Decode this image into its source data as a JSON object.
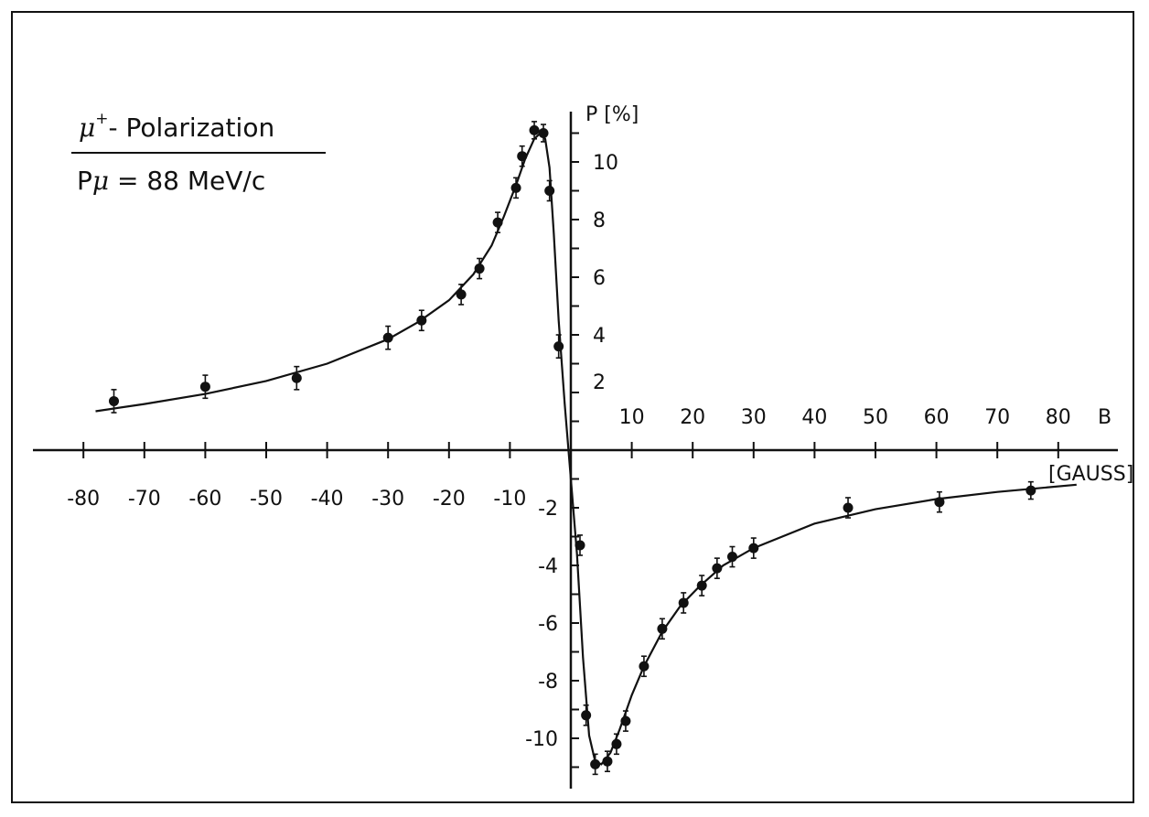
{
  "chart_data": {
    "type": "scatter",
    "title_line1_symbol": "μ",
    "title_line1_sup": "+",
    "title_line1_text": "- Polarization",
    "title_line2_symbol_left": "P",
    "title_line2_symbol": "μ",
    "title_line2_text": " = 88 MeV/c",
    "xlabel": "B",
    "xunit": "[GAUSS]",
    "ylabel": "P [%]",
    "xlim": [
      -80,
      85
    ],
    "ylim": [
      -11.5,
      12
    ],
    "x_ticks_neg": [
      -80,
      -70,
      -60,
      -50,
      -40,
      -30,
      -20,
      -10
    ],
    "x_ticks_pos": [
      10,
      20,
      30,
      40,
      50,
      60,
      70,
      80
    ],
    "y_ticks_pos": [
      2,
      4,
      6,
      8,
      10
    ],
    "y_ticks_neg": [
      -2,
      -4,
      -6,
      -8,
      -10
    ],
    "series": [
      {
        "points": [
          {
            "x": -75,
            "y": 1.7,
            "err": 0.4
          },
          {
            "x": -60,
            "y": 2.2,
            "err": 0.4
          },
          {
            "x": -45,
            "y": 2.5,
            "err": 0.4
          },
          {
            "x": -30,
            "y": 3.9,
            "err": 0.4
          },
          {
            "x": -24.5,
            "y": 4.5,
            "err": 0.35
          },
          {
            "x": -18,
            "y": 5.4,
            "err": 0.35
          },
          {
            "x": -15,
            "y": 6.3,
            "err": 0.35
          },
          {
            "x": -12,
            "y": 7.9,
            "err": 0.35
          },
          {
            "x": -9,
            "y": 9.1,
            "err": 0.35
          },
          {
            "x": -8,
            "y": 10.2,
            "err": 0.35
          },
          {
            "x": -6,
            "y": 11.1,
            "err": 0.3
          },
          {
            "x": -4.5,
            "y": 11.0,
            "err": 0.3
          },
          {
            "x": -3.5,
            "y": 9.0,
            "err": 0.35
          },
          {
            "x": -2,
            "y": 3.6,
            "err": 0.4
          },
          {
            "x": 1.5,
            "y": -3.3,
            "err": 0.35
          },
          {
            "x": 2.5,
            "y": -9.2,
            "err": 0.35
          },
          {
            "x": 4,
            "y": -10.9,
            "err": 0.35
          },
          {
            "x": 6,
            "y": -10.8,
            "err": 0.35
          },
          {
            "x": 7.5,
            "y": -10.2,
            "err": 0.35
          },
          {
            "x": 9,
            "y": -9.4,
            "err": 0.35
          },
          {
            "x": 12,
            "y": -7.5,
            "err": 0.35
          },
          {
            "x": 15,
            "y": -6.2,
            "err": 0.35
          },
          {
            "x": 18.5,
            "y": -5.3,
            "err": 0.35
          },
          {
            "x": 21.5,
            "y": -4.7,
            "err": 0.35
          },
          {
            "x": 24,
            "y": -4.1,
            "err": 0.35
          },
          {
            "x": 26.5,
            "y": -3.7,
            "err": 0.35
          },
          {
            "x": 30,
            "y": -3.4,
            "err": 0.35
          },
          {
            "x": 45.5,
            "y": -2.0,
            "err": 0.35
          },
          {
            "x": 60.5,
            "y": -1.8,
            "err": 0.35
          },
          {
            "x": 75.5,
            "y": -1.4,
            "err": 0.3
          }
        ]
      }
    ],
    "fit_curve": [
      {
        "x": -78,
        "y": 1.35
      },
      {
        "x": -70,
        "y": 1.6
      },
      {
        "x": -60,
        "y": 1.95
      },
      {
        "x": -50,
        "y": 2.4
      },
      {
        "x": -40,
        "y": 3.0
      },
      {
        "x": -30,
        "y": 3.85
      },
      {
        "x": -25,
        "y": 4.45
      },
      {
        "x": -20,
        "y": 5.2
      },
      {
        "x": -16,
        "y": 6.1
      },
      {
        "x": -13,
        "y": 7.1
      },
      {
        "x": -11,
        "y": 8.1
      },
      {
        "x": -9,
        "y": 9.2
      },
      {
        "x": -7.5,
        "y": 10.1
      },
      {
        "x": -6,
        "y": 10.8
      },
      {
        "x": -5,
        "y": 11.0
      },
      {
        "x": -4.2,
        "y": 10.8
      },
      {
        "x": -3.5,
        "y": 9.8
      },
      {
        "x": -2.8,
        "y": 7.5
      },
      {
        "x": -2,
        "y": 4.5
      },
      {
        "x": -1,
        "y": 1.6
      },
      {
        "x": 0,
        "y": -1.0
      },
      {
        "x": 1,
        "y": -3.6
      },
      {
        "x": 2,
        "y": -7.2
      },
      {
        "x": 3,
        "y": -9.9
      },
      {
        "x": 4,
        "y": -10.8
      },
      {
        "x": 5,
        "y": -10.9
      },
      {
        "x": 6.5,
        "y": -10.5
      },
      {
        "x": 8,
        "y": -9.7
      },
      {
        "x": 10,
        "y": -8.5
      },
      {
        "x": 12,
        "y": -7.5
      },
      {
        "x": 15,
        "y": -6.3
      },
      {
        "x": 18,
        "y": -5.4
      },
      {
        "x": 21,
        "y": -4.75
      },
      {
        "x": 25,
        "y": -4.0
      },
      {
        "x": 30,
        "y": -3.4
      },
      {
        "x": 40,
        "y": -2.55
      },
      {
        "x": 50,
        "y": -2.05
      },
      {
        "x": 60,
        "y": -1.7
      },
      {
        "x": 70,
        "y": -1.45
      },
      {
        "x": 83,
        "y": -1.2
      }
    ]
  }
}
